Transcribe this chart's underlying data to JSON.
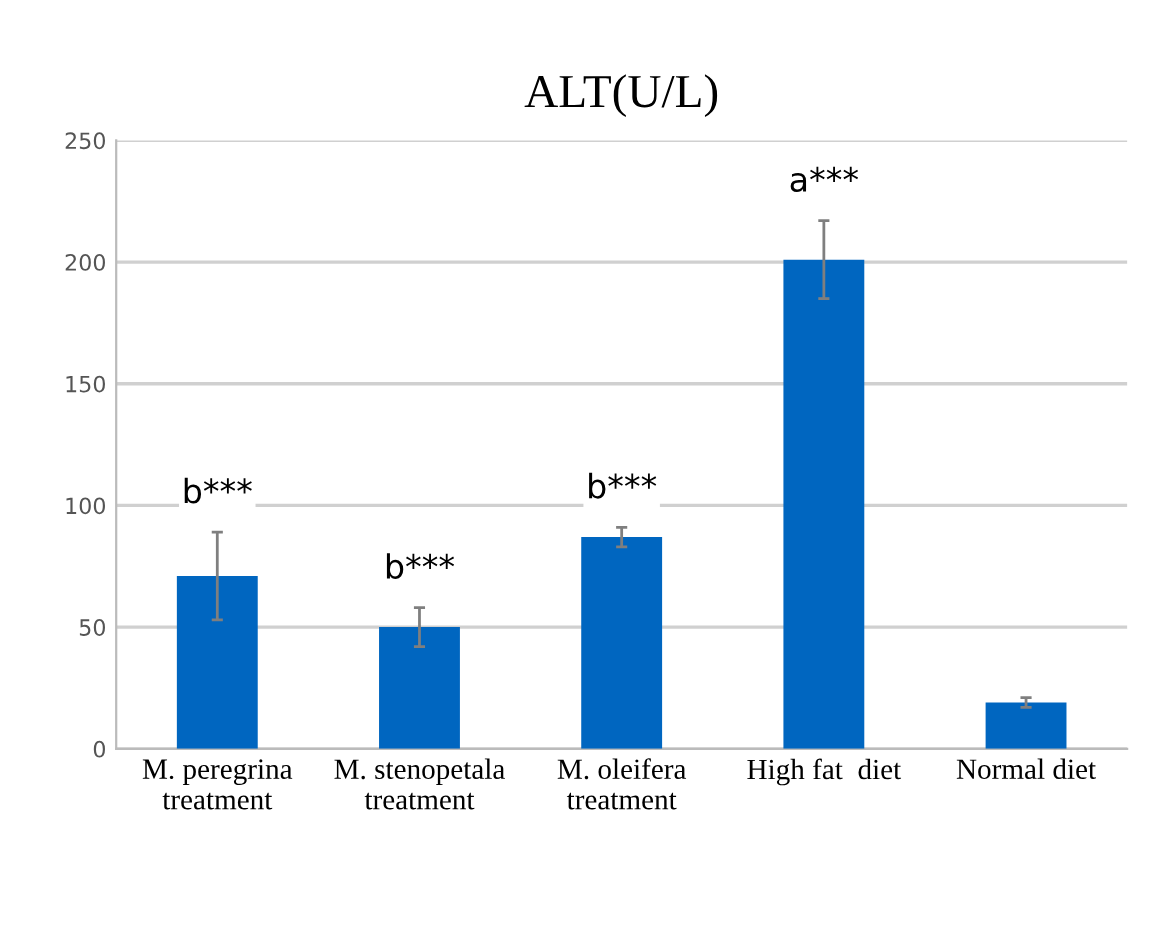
{
  "chart_data": {
    "type": "bar",
    "title": "ALT(U/L)",
    "categories": [
      "M. peregrina\ntreatment",
      "M. stenopetala\ntreatment",
      "M. oleifera\ntreatment",
      "High fat  diet",
      "Normal diet"
    ],
    "values": [
      71,
      50,
      87,
      201,
      19
    ],
    "errors": [
      18,
      8,
      4,
      16,
      2
    ],
    "color": "#0066c0",
    "ylim": [
      0,
      250
    ],
    "yticks": [
      0,
      50,
      100,
      150,
      200,
      250
    ],
    "grid": "y",
    "value_labels": [
      "b***",
      "b***",
      "b***",
      "a***",
      null
    ]
  }
}
